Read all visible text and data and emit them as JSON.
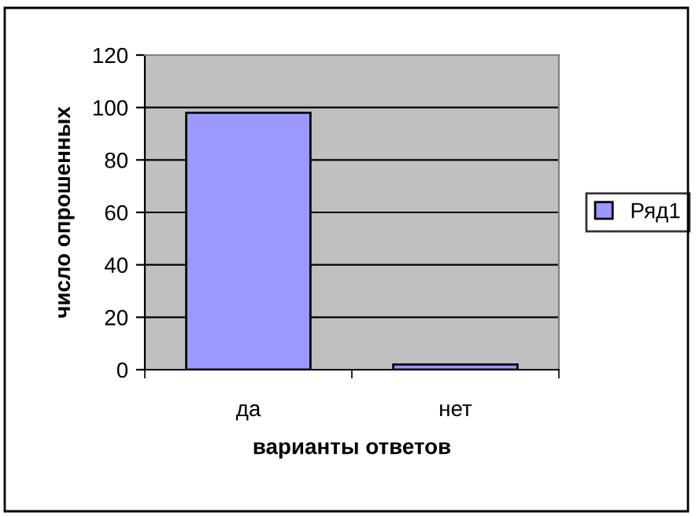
{
  "chart_data": {
    "type": "bar",
    "xlabel": "варианты ответов",
    "ylabel": "число опрошенных",
    "categories": [
      "да",
      "нет"
    ],
    "series": [
      {
        "name": "Ряд1",
        "color": "#9999ff",
        "values": [
          98,
          2
        ]
      }
    ],
    "ylim": [
      0,
      120
    ],
    "yticks": [
      0,
      20,
      40,
      60,
      80,
      100,
      120
    ],
    "grid": "y",
    "legend": "right"
  }
}
